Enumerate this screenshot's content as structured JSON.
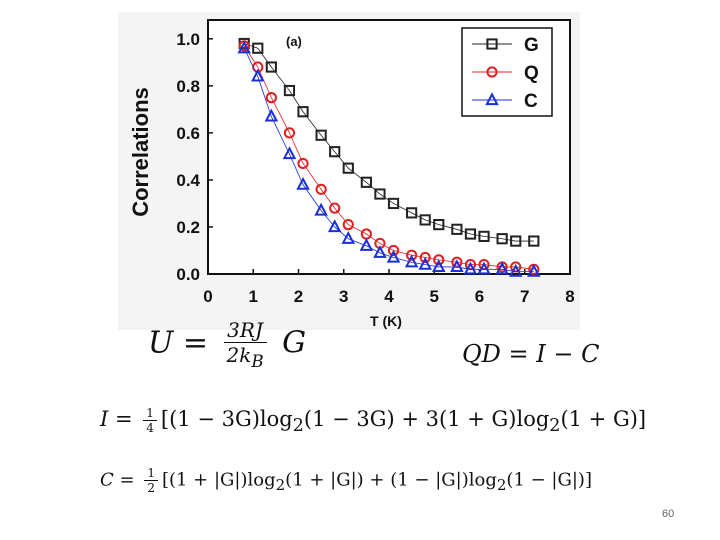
{
  "chart_data": {
    "type": "scatter",
    "panel_label": "(a)",
    "xlabel": "T (K)",
    "ylabel": "Correlations",
    "xlim": [
      0,
      8
    ],
    "ylim": [
      0,
      1.08
    ],
    "xticks": [
      "0",
      "1",
      "2",
      "3",
      "4",
      "5",
      "6",
      "7",
      "8"
    ],
    "yticks": [
      "0.0",
      "0.2",
      "0.4",
      "0.6",
      "0.8",
      "1.0"
    ],
    "grid": false,
    "legend_position": "top-right",
    "series": [
      {
        "name": "G",
        "marker": "square",
        "color": "#222222",
        "x": [
          0.8,
          1.1,
          1.4,
          1.8,
          2.1,
          2.5,
          2.8,
          3.1,
          3.5,
          3.8,
          4.1,
          4.5,
          4.8,
          5.1,
          5.5,
          5.8,
          6.1,
          6.5,
          6.8,
          7.2
        ],
        "y": [
          0.98,
          0.96,
          0.88,
          0.78,
          0.69,
          0.59,
          0.52,
          0.45,
          0.39,
          0.34,
          0.3,
          0.26,
          0.23,
          0.21,
          0.19,
          0.17,
          0.16,
          0.15,
          0.14,
          0.14
        ]
      },
      {
        "name": "Q",
        "marker": "circle",
        "color": "#e02020",
        "x": [
          0.8,
          1.1,
          1.4,
          1.8,
          2.1,
          2.5,
          2.8,
          3.1,
          3.5,
          3.8,
          4.1,
          4.5,
          4.8,
          5.1,
          5.5,
          5.8,
          6.1,
          6.5,
          6.8,
          7.2
        ],
        "y": [
          0.97,
          0.88,
          0.75,
          0.6,
          0.47,
          0.36,
          0.28,
          0.21,
          0.17,
          0.13,
          0.1,
          0.08,
          0.07,
          0.06,
          0.05,
          0.04,
          0.04,
          0.03,
          0.03,
          0.02
        ]
      },
      {
        "name": "C",
        "marker": "triangle",
        "color": "#1a2fd6",
        "x": [
          0.8,
          1.1,
          1.4,
          1.8,
          2.1,
          2.5,
          2.8,
          3.1,
          3.5,
          3.8,
          4.1,
          4.5,
          4.8,
          5.1,
          5.5,
          5.8,
          6.1,
          6.5,
          6.8,
          7.2
        ],
        "y": [
          0.96,
          0.84,
          0.67,
          0.51,
          0.38,
          0.27,
          0.2,
          0.15,
          0.12,
          0.09,
          0.07,
          0.05,
          0.04,
          0.03,
          0.03,
          0.02,
          0.02,
          0.02,
          0.01,
          0.01
        ]
      }
    ]
  },
  "equations": {
    "u": {
      "lhs": "U =",
      "num": "3RJ",
      "den": "2k",
      "den_sub": "B",
      "rhs": "G"
    },
    "qd": "QD = I − C",
    "i": {
      "lhs": "I =",
      "num": "1",
      "den": "4",
      "body": "[(1 − 3G)log",
      "body2": "(1 − 3G) + 3(1 + G)log",
      "body3": "(1 + G)]",
      "sub": "2"
    },
    "c": {
      "lhs": "C =",
      "num": "1",
      "den": "2",
      "body": "[(1 + |G|)log",
      "body2": "(1 + |G|) + (1 − |G|)log",
      "body3": "(1 − |G|)]",
      "sub": "2"
    }
  },
  "slide_number": "60"
}
